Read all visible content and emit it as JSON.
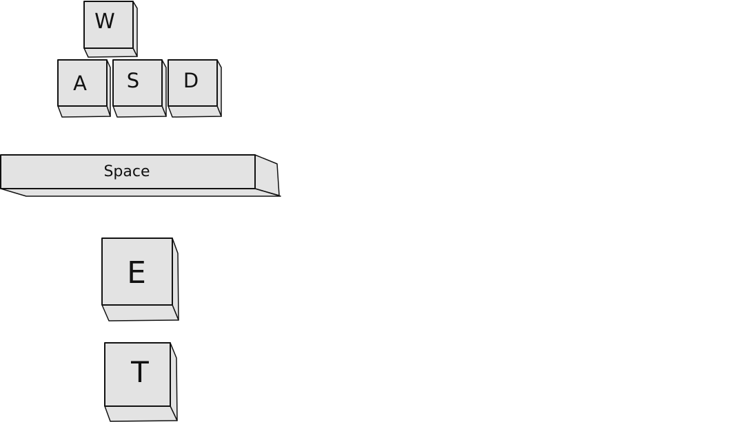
{
  "keys": {
    "w": {
      "label": "W"
    },
    "a": {
      "label": "A"
    },
    "s": {
      "label": "S"
    },
    "d": {
      "label": "D"
    },
    "space": {
      "label": "Space"
    },
    "e": {
      "label": "E"
    },
    "t": {
      "label": "T"
    }
  },
  "colors": {
    "key_fill": "#e3e3e3",
    "key_outline": "#111111",
    "background": "#ffffff"
  }
}
